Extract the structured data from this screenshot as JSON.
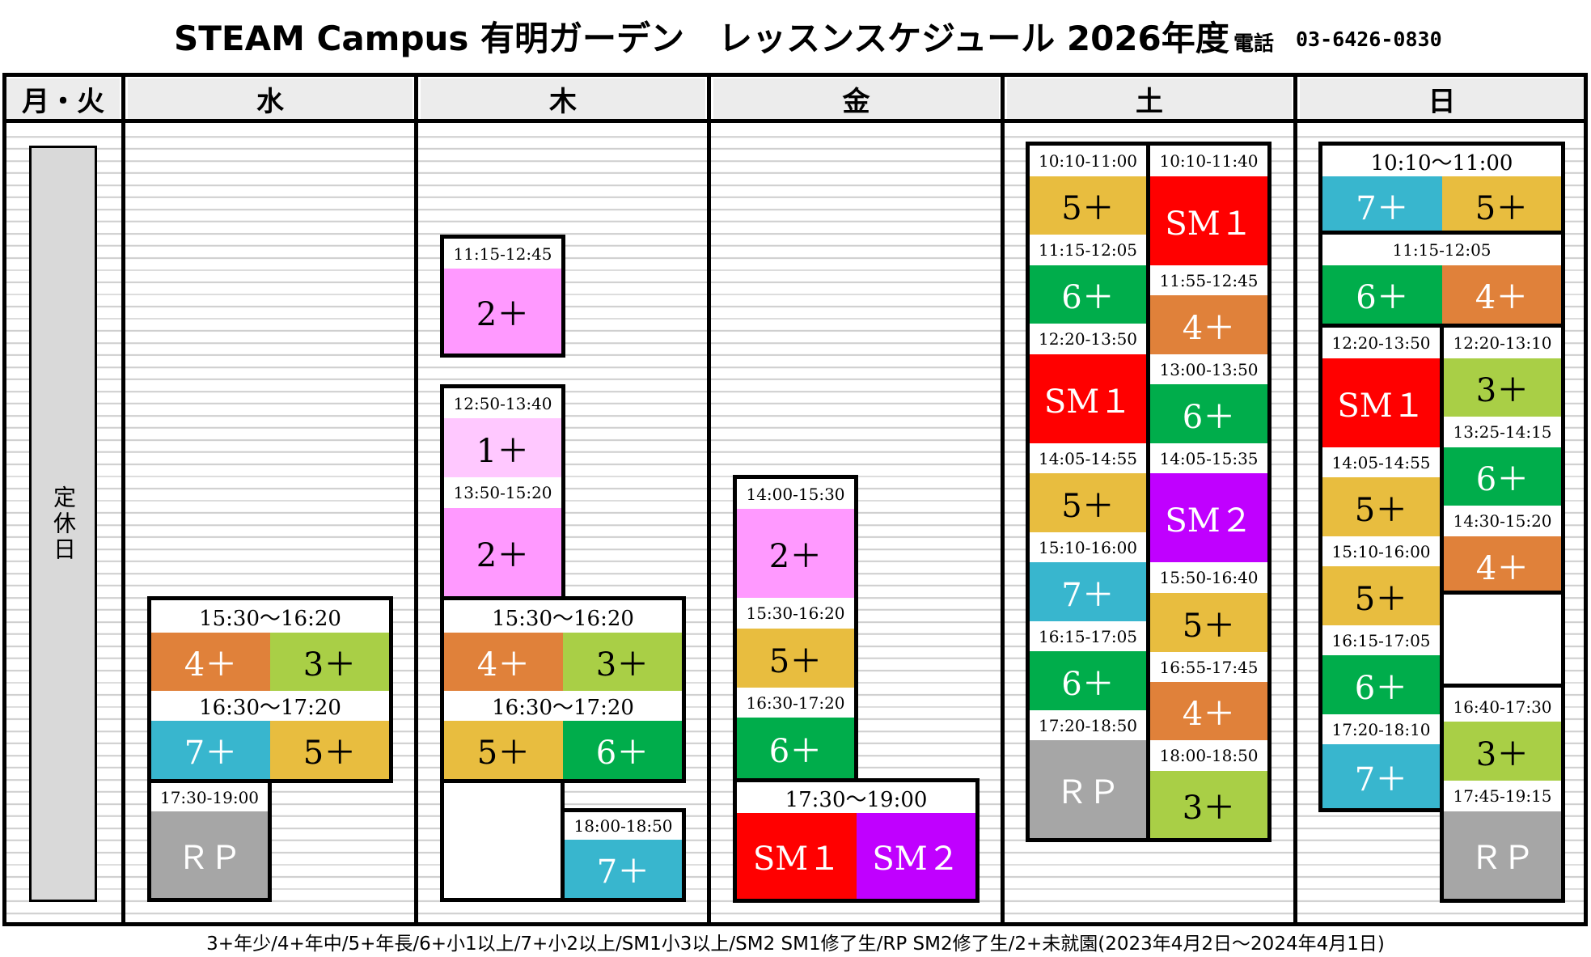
{
  "header": {
    "title": "STEAM Campus 有明ガーデン　レッスンスケジュール 2026年度",
    "phone_label": "電話",
    "phone_number": "03-6426-0830"
  },
  "columns": [
    "月・火",
    "水",
    "木",
    "金",
    "土",
    "日"
  ],
  "closed_day_label": "定休日",
  "classes": {
    "k1": "1＋",
    "k2": "2＋",
    "k3": "3＋",
    "k4": "4＋",
    "k5": "5＋",
    "k6": "6＋",
    "k7": "7＋",
    "sm1": "SM１",
    "sm2": "SM２",
    "rp": "ＲＰ"
  },
  "times": {
    "t_1010_1100": "10:10-11:00",
    "t_1010_1140": "10:10-11:40",
    "t_1010_1100_wide": "10:10〜11:00",
    "t_1115_1205": "11:15-12:05",
    "t_1115_1245": "11:15-12:45",
    "t_1155_1245": "11:55-12:45",
    "t_1220_1310": "12:20-13:10",
    "t_1220_1350": "12:20-13:50",
    "t_1250_1340": "12:50-13:40",
    "t_1300_1350": "13:00-13:50",
    "t_1325_1415": "13:25-14:15",
    "t_1350_1520": "13:50-15:20",
    "t_1400_1530": "14:00-15:30",
    "t_1405_1455": "14:05-14:55",
    "t_1405_1535": "14:05-15:35",
    "t_1430_1520": "14:30-15:20",
    "t_1510_1600": "15:10-16:00",
    "t_1530_1620": "15:30-16:20",
    "t_1530_1620_wide": "15:30〜16:20",
    "t_1550_1640": "15:50-16:40",
    "t_1615_1705": "16:15-17:05",
    "t_1630_1720": "16:30-17:20",
    "t_1630_1720_wide": "16:30〜17:20",
    "t_1640_1730": "16:40-17:30",
    "t_1655_1745": "16:55-17:45",
    "t_1720_1810": "17:20-18:10",
    "t_1720_1850": "17:20-18:50",
    "t_1730_1900": "17:30-19:00",
    "t_1730_1900_wide": "17:30〜19:00",
    "t_1745_1915": "17:45-19:15",
    "t_1800_1850": "18:00-18:50"
  },
  "colors": {
    "k1": "#ffc8ff",
    "k2": "#ff99ff",
    "k3": "#a9cf46",
    "k4": "#e0813a",
    "k5": "#e8bd3f",
    "k6": "#00ad4b",
    "k7": "#38b6ce",
    "sm1": "#ff0000",
    "sm2": "#c000ff",
    "rp": "#a6a6a6"
  },
  "footer": "3+年少/4+年中/5+年長/6+小1以上/7+小2以上/SM1小3以上/SM2 SM1修了生/RP SM2修了生/2+未就園(2023年4月2日〜2024年4月1日)"
}
